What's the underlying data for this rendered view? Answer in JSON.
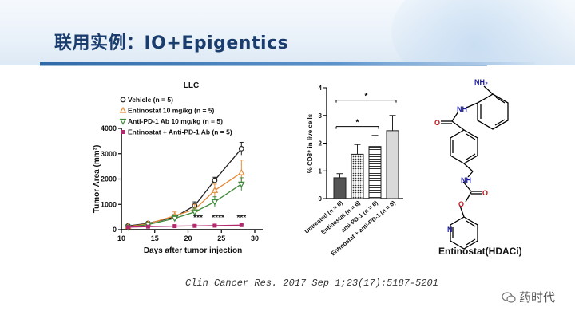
{
  "slide": {
    "title": "联用实例：IO+Epigentics",
    "citation": "Clin Cancer Res. 2017 Sep 1;23(17):5187-5201",
    "watermark": "药时代"
  },
  "chart_data": [
    {
      "type": "line",
      "title": "LLC",
      "xlabel": "Days after tumor injection",
      "ylabel": "Tumor Area (mm³)",
      "xlim": [
        10,
        30
      ],
      "ylim": [
        0,
        4000
      ],
      "xticks": [
        "10",
        "15",
        "20",
        "25",
        "30"
      ],
      "yticks": [
        "0",
        "1000",
        "2000",
        "3000",
        "4000"
      ],
      "legend_position": "top-left",
      "series": [
        {
          "name": "Vehicle (n = 5)",
          "color": "#222222",
          "marker": "open-circle",
          "x": [
            11,
            14,
            18,
            21,
            24,
            28
          ],
          "y": [
            150,
            250,
            500,
            950,
            1950,
            3200
          ],
          "err": [
            50,
            60,
            100,
            150,
            120,
            250
          ]
        },
        {
          "name": "Entinostat 10 mg/kg (n = 5)",
          "color": "#e38b3a",
          "marker": "open-triangle-up",
          "x": [
            11,
            14,
            18,
            21,
            24,
            28
          ],
          "y": [
            120,
            230,
            550,
            800,
            1550,
            2250
          ],
          "err": [
            40,
            60,
            150,
            200,
            250,
            500
          ]
        },
        {
          "name": "Anti-PD-1 Ab 10 mg/kg (n = 5)",
          "color": "#3f8a3a",
          "marker": "open-triangle-down",
          "x": [
            11,
            14,
            18,
            21,
            24,
            28
          ],
          "y": [
            100,
            200,
            450,
            700,
            1100,
            1800
          ],
          "err": [
            40,
            60,
            100,
            150,
            200,
            250
          ]
        },
        {
          "name": "Entinostat + Anti-PD-1 Ab (n = 5)",
          "color": "#b02a6e",
          "marker": "filled-square",
          "x": [
            11,
            14,
            18,
            21,
            24,
            28
          ],
          "y": [
            100,
            120,
            140,
            150,
            160,
            180
          ],
          "err": [
            20,
            20,
            20,
            30,
            30,
            30
          ]
        }
      ],
      "annotations": [
        {
          "text": "***",
          "x": 21.5
        },
        {
          "text": "****",
          "x": 24.5
        },
        {
          "text": "***",
          "x": 28
        }
      ]
    },
    {
      "type": "bar",
      "xlabel": "",
      "ylabel": "% CD8⁺ in live cells",
      "ylim": [
        0,
        4
      ],
      "yticks": [
        "0",
        "1",
        "2",
        "3",
        "4"
      ],
      "categories": [
        "Untreated (n = 6)",
        "Entinostat (n = 6)",
        "anti-PD-1 (n = 6)",
        "Entinostat + anti-PD-1 (n = 6)"
      ],
      "values": [
        0.75,
        1.6,
        1.88,
        2.45
      ],
      "errors": [
        0.15,
        0.35,
        0.4,
        0.55
      ],
      "significance": [
        {
          "text": "*",
          "from": 0,
          "to": 2
        },
        {
          "text": "*",
          "from": 0,
          "to": 3
        }
      ]
    }
  ],
  "molecule": {
    "caption": "Entinostat(HDACi)",
    "labels": {
      "nh2": "NH₂",
      "nh_amide": "NH",
      "o_amide": "O",
      "nh_carbamate": "NH",
      "o_carbamate": "O",
      "o_ester": "O",
      "n_pyridine": "N"
    }
  }
}
